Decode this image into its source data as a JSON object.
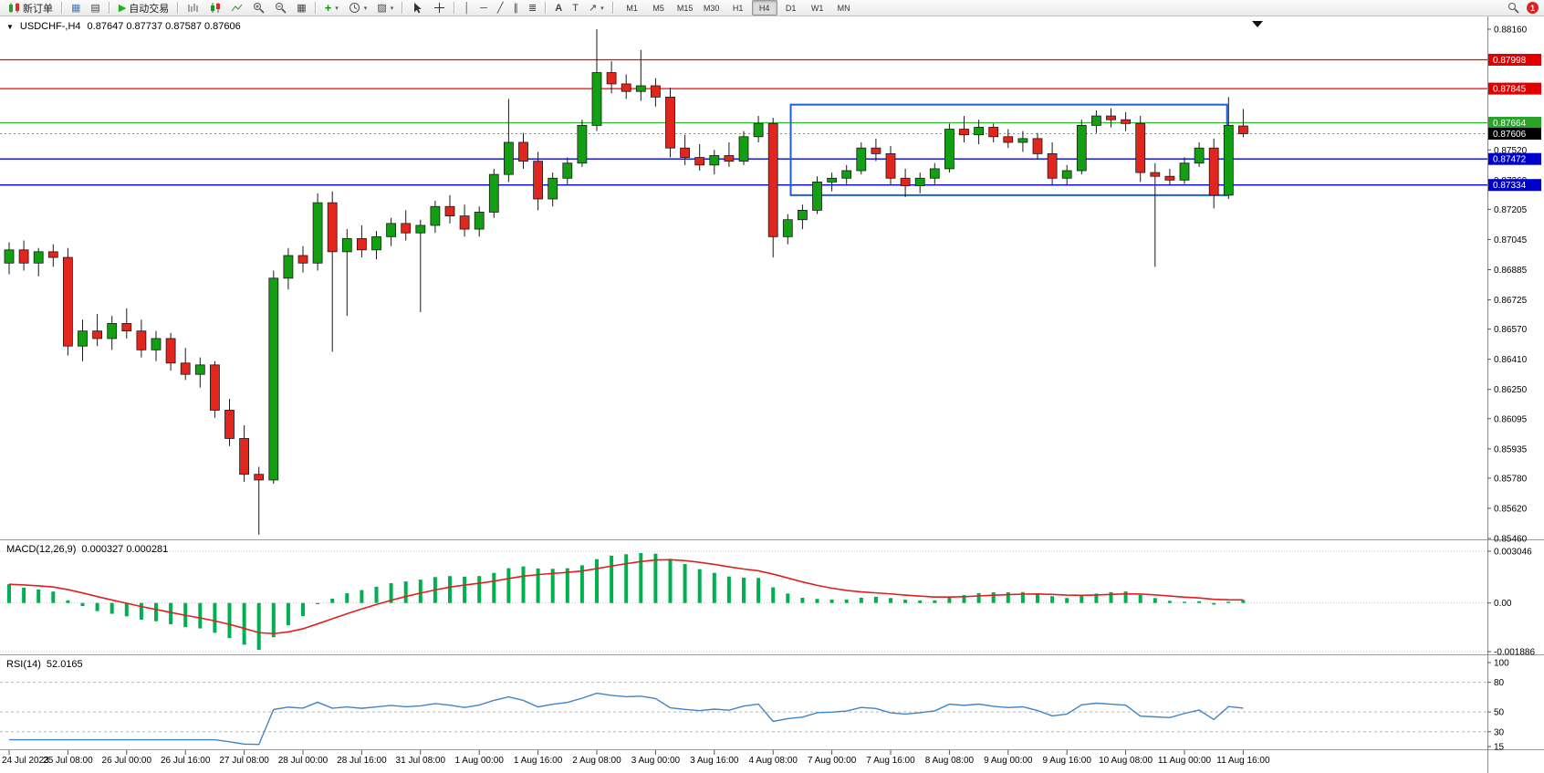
{
  "toolbar": {
    "new_order_label": "新订单",
    "auto_trading_label": "自动交易",
    "timeframes": [
      "M1",
      "M5",
      "M15",
      "M30",
      "H1",
      "H4",
      "D1",
      "W1",
      "MN"
    ],
    "active_timeframe": "H4",
    "notification_badge": "1",
    "icons": {
      "auto_trading_play": "▶",
      "market_watch": "▦",
      "navigator": "▤",
      "tile_windows": "▦",
      "templates": "▨",
      "vertical_line": "│",
      "horizontal_line": "─",
      "trendline": "╱",
      "channel": "∥",
      "fibonacci": "≣",
      "text_tool": "A",
      "label_tool": "T",
      "arrows_tool": "↗",
      "collapse_triangle": "▼",
      "caret": "▾"
    }
  },
  "chart": {
    "title": "USDCHF-,H4",
    "ohlc_text": "0.87647 0.87737 0.87587 0.87606"
  },
  "chart_data": {
    "type": "candlestick",
    "symbol": "USDCHF",
    "timeframe": "H4",
    "current_ohlc": {
      "open": 0.87647,
      "high": 0.87737,
      "low": 0.87587,
      "close": 0.87606
    },
    "colors": {
      "up": "#12a012",
      "down": "#e3261d",
      "wick": "#1a1a1a"
    },
    "price_axis": {
      "max": 0.8816,
      "min": 0.8546,
      "ticks": [
        "0.88160",
        "0.87520",
        "0.87360",
        "0.87205",
        "0.87045",
        "0.86885",
        "0.86725",
        "0.86570",
        "0.86410",
        "0.86250",
        "0.86095",
        "0.85935",
        "0.85780",
        "0.85620",
        "0.85460"
      ]
    },
    "line_labels": [
      {
        "text": "0.87998",
        "price": 0.87998,
        "color": "#e00000",
        "role": "resistance"
      },
      {
        "text": "0.87845",
        "price": 0.87845,
        "color": "#e00000",
        "role": "resistance"
      },
      {
        "text": "0.87664",
        "price": 0.87664,
        "color": "#2aa32a",
        "role": "level"
      },
      {
        "text": "0.87606",
        "price": 0.87606,
        "color": "#000000",
        "role": "current-price"
      },
      {
        "text": "0.87472",
        "price": 0.87472,
        "color": "#0000cc",
        "role": "support"
      },
      {
        "text": "0.87334",
        "price": 0.87334,
        "color": "#0000cc",
        "role": "support"
      }
    ],
    "hlines": [
      {
        "price": 0.87998,
        "color": "#ff0000"
      },
      {
        "price": 0.87845,
        "color": "#ff0000"
      },
      {
        "price": 0.87664,
        "color": "#2db82d"
      },
      {
        "price": 0.87472,
        "color": "#0000ee"
      },
      {
        "price": 0.87334,
        "color": "#0000ee"
      }
    ],
    "rectangle": {
      "from_candle": 53.2,
      "to_candle": 82.9,
      "top_price": 0.8776,
      "bottom_price": 0.8728,
      "color": "#1d5fd6"
    },
    "time_labels": [
      "24 Jul 2023",
      "25 Jul 08:00",
      "26 Jul 00:00",
      "26 Jul 16:00",
      "27 Jul 08:00",
      "28 Jul 00:00",
      "28 Jul 16:00",
      "31 Jul 08:00",
      "1 Aug 00:00",
      "1 Aug 16:00",
      "2 Aug 08:00",
      "3 Aug 00:00",
      "3 Aug 16:00",
      "4 Aug 08:00",
      "7 Aug 00:00",
      "7 Aug 16:00",
      "8 Aug 08:00",
      "9 Aug 00:00",
      "9 Aug 16:00",
      "10 Aug 08:00",
      "11 Aug 00:00",
      "11 Aug 16:00"
    ],
    "candles": [
      [
        0.8692,
        0.8703,
        0.8686,
        0.8699
      ],
      [
        0.8699,
        0.8704,
        0.8688,
        0.8692
      ],
      [
        0.8692,
        0.87,
        0.8685,
        0.8698
      ],
      [
        0.8698,
        0.8702,
        0.869,
        0.8695
      ],
      [
        0.8695,
        0.87,
        0.8643,
        0.8648
      ],
      [
        0.8648,
        0.8662,
        0.864,
        0.8656
      ],
      [
        0.8656,
        0.8665,
        0.8648,
        0.8652
      ],
      [
        0.8652,
        0.8664,
        0.8646,
        0.866
      ],
      [
        0.866,
        0.8668,
        0.8652,
        0.8656
      ],
      [
        0.8656,
        0.8662,
        0.8642,
        0.8646
      ],
      [
        0.8646,
        0.8656,
        0.864,
        0.8652
      ],
      [
        0.8652,
        0.8655,
        0.8635,
        0.8639
      ],
      [
        0.8639,
        0.8647,
        0.863,
        0.8633
      ],
      [
        0.8633,
        0.8642,
        0.8626,
        0.8638
      ],
      [
        0.8638,
        0.864,
        0.861,
        0.8614
      ],
      [
        0.8614,
        0.862,
        0.8595,
        0.8599
      ],
      [
        0.8599,
        0.8606,
        0.8576,
        0.858
      ],
      [
        0.858,
        0.8584,
        0.8548,
        0.8577
      ],
      [
        0.8577,
        0.8688,
        0.8575,
        0.8684
      ],
      [
        0.8684,
        0.87,
        0.8678,
        0.8696
      ],
      [
        0.8696,
        0.8701,
        0.8687,
        0.8692
      ],
      [
        0.8692,
        0.8729,
        0.8688,
        0.8724
      ],
      [
        0.8724,
        0.873,
        0.8645,
        0.8698
      ],
      [
        0.8698,
        0.871,
        0.8664,
        0.8705
      ],
      [
        0.8705,
        0.8712,
        0.8695,
        0.8699
      ],
      [
        0.8699,
        0.8709,
        0.8694,
        0.8706
      ],
      [
        0.8706,
        0.8716,
        0.8701,
        0.8713
      ],
      [
        0.8713,
        0.872,
        0.8704,
        0.8708
      ],
      [
        0.8708,
        0.8715,
        0.8666,
        0.8712
      ],
      [
        0.8712,
        0.8725,
        0.8708,
        0.8722
      ],
      [
        0.8722,
        0.8728,
        0.8713,
        0.8717
      ],
      [
        0.8717,
        0.8723,
        0.8706,
        0.871
      ],
      [
        0.871,
        0.8722,
        0.8706,
        0.8719
      ],
      [
        0.8719,
        0.8742,
        0.8716,
        0.8739
      ],
      [
        0.8739,
        0.8779,
        0.8735,
        0.8756
      ],
      [
        0.8756,
        0.8761,
        0.8742,
        0.8746
      ],
      [
        0.8746,
        0.8751,
        0.872,
        0.8726
      ],
      [
        0.8726,
        0.874,
        0.8722,
        0.8737
      ],
      [
        0.8737,
        0.8748,
        0.8733,
        0.8745
      ],
      [
        0.8745,
        0.8768,
        0.8743,
        0.8765
      ],
      [
        0.8765,
        0.8816,
        0.8762,
        0.8793
      ],
      [
        0.8793,
        0.8799,
        0.8782,
        0.8787
      ],
      [
        0.8787,
        0.8792,
        0.8779,
        0.8783
      ],
      [
        0.8783,
        0.8805,
        0.8778,
        0.8786
      ],
      [
        0.8786,
        0.879,
        0.8775,
        0.878
      ],
      [
        0.878,
        0.8785,
        0.8748,
        0.8753
      ],
      [
        0.8753,
        0.876,
        0.8744,
        0.8748
      ],
      [
        0.8748,
        0.8755,
        0.8741,
        0.8744
      ],
      [
        0.8744,
        0.8752,
        0.8739,
        0.8749
      ],
      [
        0.8749,
        0.8756,
        0.8743,
        0.8746
      ],
      [
        0.8746,
        0.8762,
        0.8744,
        0.8759
      ],
      [
        0.8759,
        0.877,
        0.8756,
        0.8766
      ],
      [
        0.8766,
        0.8769,
        0.8695,
        0.8706
      ],
      [
        0.8706,
        0.8718,
        0.8702,
        0.8715
      ],
      [
        0.8715,
        0.8723,
        0.871,
        0.872
      ],
      [
        0.872,
        0.8738,
        0.8718,
        0.8735
      ],
      [
        0.8735,
        0.874,
        0.873,
        0.8737
      ],
      [
        0.8737,
        0.8744,
        0.8733,
        0.8741
      ],
      [
        0.8741,
        0.8756,
        0.8739,
        0.8753
      ],
      [
        0.8753,
        0.8758,
        0.8746,
        0.875
      ],
      [
        0.875,
        0.8754,
        0.8733,
        0.8737
      ],
      [
        0.8737,
        0.8742,
        0.8727,
        0.8733
      ],
      [
        0.8733,
        0.874,
        0.8729,
        0.8737
      ],
      [
        0.8737,
        0.8745,
        0.8733,
        0.8742
      ],
      [
        0.8742,
        0.8766,
        0.874,
        0.8763
      ],
      [
        0.8763,
        0.877,
        0.8756,
        0.876
      ],
      [
        0.876,
        0.8768,
        0.8755,
        0.8764
      ],
      [
        0.8764,
        0.8766,
        0.8756,
        0.8759
      ],
      [
        0.8759,
        0.8763,
        0.8753,
        0.8756
      ],
      [
        0.8756,
        0.8762,
        0.8751,
        0.8758
      ],
      [
        0.8758,
        0.8761,
        0.8747,
        0.875
      ],
      [
        0.875,
        0.8756,
        0.8733,
        0.8737
      ],
      [
        0.8737,
        0.8744,
        0.8733,
        0.8741
      ],
      [
        0.8741,
        0.8768,
        0.8739,
        0.8765
      ],
      [
        0.8765,
        0.8773,
        0.8761,
        0.877
      ],
      [
        0.877,
        0.8774,
        0.8764,
        0.8768
      ],
      [
        0.8768,
        0.8772,
        0.8762,
        0.8766
      ],
      [
        0.8766,
        0.877,
        0.8735,
        0.874
      ],
      [
        0.874,
        0.8745,
        0.869,
        0.8738
      ],
      [
        0.8738,
        0.8742,
        0.8733,
        0.8736
      ],
      [
        0.8736,
        0.8748,
        0.8734,
        0.8745
      ],
      [
        0.8745,
        0.8756,
        0.8743,
        0.8753
      ],
      [
        0.8753,
        0.8758,
        0.8721,
        0.8728
      ],
      [
        0.8728,
        0.878,
        0.8726,
        0.8765
      ],
      [
        0.87647,
        0.87737,
        0.87587,
        0.87606
      ]
    ],
    "indicators": {
      "macd": {
        "label": "MACD(12,26,9)",
        "values_text": "0.000327 0.000281",
        "axis_labels": [
          "0.003046",
          "0.00",
          "-0.001886"
        ],
        "histogram_color": "#00b050",
        "signal_color": "#e02020"
      },
      "rsi": {
        "label": "RSI(14)",
        "value_text": "52.0165",
        "axis_labels": [
          "100",
          "80",
          "50",
          "30",
          "15"
        ],
        "levels": [
          80,
          50,
          30
        ],
        "line_color": "#3d85c8"
      }
    }
  }
}
